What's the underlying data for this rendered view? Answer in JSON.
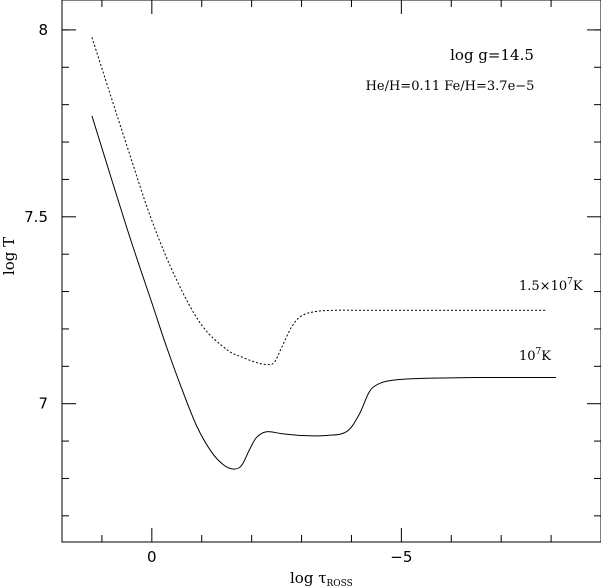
{
  "chart_data": {
    "type": "line",
    "title": "",
    "xlabel": "log τ",
    "xlabel_sub": "ROSS",
    "ylabel": "log T",
    "xlim": [
      1.8,
      -9.0
    ],
    "ylim": [
      6.63,
      8.08
    ],
    "xaxis_inverted": true,
    "grid": false,
    "x_ticks": [
      {
        "value": 0,
        "label": "0"
      },
      {
        "value": -5,
        "label": "−5"
      }
    ],
    "x_minor_ticks": [
      1,
      -1,
      -2,
      -3,
      -4,
      -6,
      -7,
      -8
    ],
    "y_ticks": [
      {
        "value": 7,
        "label": "7"
      },
      {
        "value": 7.5,
        "label": "7.5"
      },
      {
        "value": 8,
        "label": "8"
      }
    ],
    "y_minor_ticks": [
      6.7,
      6.8,
      6.9,
      7.1,
      7.2,
      7.3,
      7.4,
      7.6,
      7.7,
      7.8,
      7.9,
      8.0
    ],
    "annotations": {
      "logg": "log  g=14.5",
      "abund": "He/H=0.11   Fe/H=3.7e−5"
    },
    "series": [
      {
        "label_base": "1.5×10",
        "label_exp": "7",
        "label_unit": "K",
        "style": "dotted",
        "x": [
          1.2,
          0.5,
          0,
          -0.5,
          -1.0,
          -1.5,
          -1.8,
          -2.1,
          -2.3,
          -2.45,
          -2.6,
          -2.8,
          -3.0,
          -3.3,
          -3.7,
          -4.2,
          -5,
          -6,
          -7,
          -7.9
        ],
        "y": [
          7.98,
          7.69,
          7.49,
          7.33,
          7.21,
          7.145,
          7.125,
          7.11,
          7.105,
          7.11,
          7.15,
          7.205,
          7.235,
          7.247,
          7.25,
          7.25,
          7.25,
          7.25,
          7.25,
          7.25
        ]
      },
      {
        "label_base": "10",
        "label_exp": "7",
        "label_unit": "K",
        "style": "solid",
        "x": [
          1.2,
          0.5,
          0,
          -0.3,
          -0.6,
          -0.9,
          -1.2,
          -1.45,
          -1.65,
          -1.8,
          -1.95,
          -2.1,
          -2.3,
          -2.6,
          -3.0,
          -3.5,
          -3.9,
          -4.15,
          -4.35,
          -4.5,
          -4.7,
          -5.0,
          -5.5,
          -6.5,
          -7.5,
          -8.1
        ],
        "y": [
          7.77,
          7.47,
          7.27,
          7.15,
          7.04,
          6.94,
          6.87,
          6.835,
          6.825,
          6.835,
          6.875,
          6.91,
          6.925,
          6.92,
          6.915,
          6.915,
          6.925,
          6.97,
          7.03,
          7.05,
          7.06,
          7.065,
          7.068,
          7.07,
          7.07,
          7.07
        ]
      }
    ]
  }
}
